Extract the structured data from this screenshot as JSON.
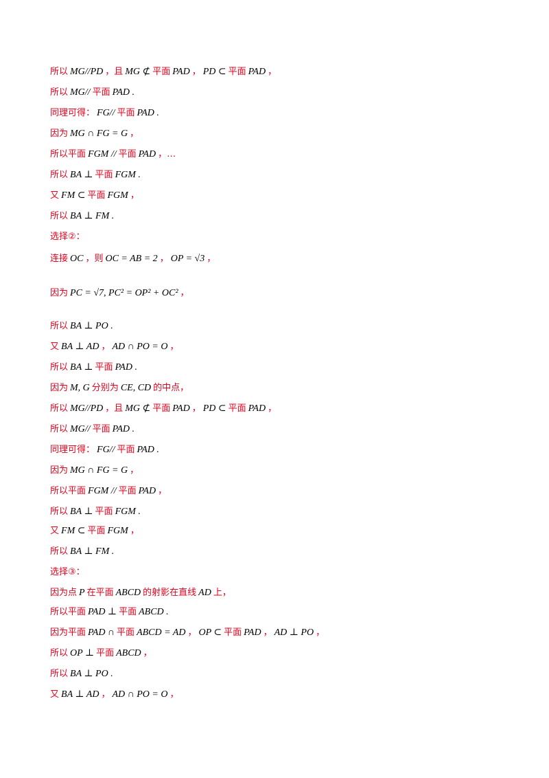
{
  "lines": [
    {
      "parts": [
        {
          "t": "所以",
          "k": "cn"
        },
        {
          "t": "MG//PD",
          "k": "m"
        },
        {
          "t": "，且",
          "k": "cn"
        },
        {
          "t": "MG ⊄",
          "k": "m"
        },
        {
          "t": "平面",
          "k": "cn"
        },
        {
          "t": "PAD",
          "k": "m"
        },
        {
          "t": "，",
          "k": "cn"
        },
        {
          "t": "PD ⊂",
          "k": "m"
        },
        {
          "t": "平面",
          "k": "cn"
        },
        {
          "t": "PAD",
          "k": "m"
        },
        {
          "t": "，",
          "k": "cn"
        }
      ]
    },
    {
      "parts": [
        {
          "t": "所以",
          "k": "cn"
        },
        {
          "t": "MG//",
          "k": "m"
        },
        {
          "t": "平面",
          "k": "cn"
        },
        {
          "t": "PAD .",
          "k": "m"
        }
      ]
    },
    {
      "parts": [
        {
          "t": "同理可得：",
          "k": "cn"
        },
        {
          "t": "FG//",
          "k": "m"
        },
        {
          "t": "平面",
          "k": "cn"
        },
        {
          "t": "PAD .",
          "k": "m"
        }
      ]
    },
    {
      "parts": [
        {
          "t": "因为",
          "k": "cn"
        },
        {
          "t": "MG ∩ FG = G",
          "k": "m"
        },
        {
          "t": "，",
          "k": "cn"
        }
      ]
    },
    {
      "parts": [
        {
          "t": "所以平面",
          "k": "cn"
        },
        {
          "t": "FGM //",
          "k": "m"
        },
        {
          "t": "平面",
          "k": "cn"
        },
        {
          "t": "PAD",
          "k": "m"
        },
        {
          "t": "，…",
          "k": "cn"
        }
      ]
    },
    {
      "parts": [
        {
          "t": "所以",
          "k": "cn"
        },
        {
          "t": "BA ⊥",
          "k": "m"
        },
        {
          "t": "平面",
          "k": "cn"
        },
        {
          "t": "FGM .",
          "k": "m"
        }
      ]
    },
    {
      "parts": [
        {
          "t": "又",
          "k": "cn"
        },
        {
          "t": "FM ⊂",
          "k": "m"
        },
        {
          "t": "平面",
          "k": "cn"
        },
        {
          "t": "FGM",
          "k": "m"
        },
        {
          "t": "，",
          "k": "cn"
        }
      ]
    },
    {
      "parts": [
        {
          "t": "所以",
          "k": "cn"
        },
        {
          "t": "BA ⊥ FM .",
          "k": "m"
        }
      ]
    },
    {
      "parts": [
        {
          "t": "选择②：",
          "k": "cn"
        }
      ]
    },
    {
      "parts": [
        {
          "t": "连接",
          "k": "cn"
        },
        {
          "t": "OC",
          "k": "m"
        },
        {
          "t": "，则",
          "k": "cn"
        },
        {
          "t": "OC = AB = 2",
          "k": "m"
        },
        {
          "t": "，",
          "k": "cn"
        },
        {
          "t": "OP = √3",
          "k": "m"
        },
        {
          "t": "，",
          "k": "cn"
        }
      ]
    },
    {
      "parts": [
        {
          "t": "因为",
          "k": "cn"
        },
        {
          "t": "PC = √7, PC² = OP² + OC²",
          "k": "m"
        },
        {
          "t": "，",
          "k": "cn"
        }
      ]
    },
    {
      "parts": [
        {
          "t": "所以",
          "k": "cn"
        },
        {
          "t": "BA ⊥ PO .",
          "k": "m"
        }
      ]
    },
    {
      "parts": [
        {
          "t": "又",
          "k": "cn"
        },
        {
          "t": "BA ⊥ AD",
          "k": "m"
        },
        {
          "t": "，",
          "k": "cn"
        },
        {
          "t": "AD ∩ PO = O",
          "k": "m"
        },
        {
          "t": "，",
          "k": "cn"
        }
      ]
    },
    {
      "parts": [
        {
          "t": "所以",
          "k": "cn"
        },
        {
          "t": "BA ⊥",
          "k": "m"
        },
        {
          "t": "平面",
          "k": "cn"
        },
        {
          "t": "PAD .",
          "k": "m"
        }
      ]
    },
    {
      "parts": [
        {
          "t": "因为",
          "k": "cn"
        },
        {
          "t": "M, G",
          "k": "m"
        },
        {
          "t": "分别为",
          "k": "cn"
        },
        {
          "t": "CE, CD",
          "k": "m"
        },
        {
          "t": "的中点，",
          "k": "cn"
        }
      ]
    },
    {
      "parts": [
        {
          "t": "所以",
          "k": "cn"
        },
        {
          "t": "MG//PD",
          "k": "m"
        },
        {
          "t": "，且",
          "k": "cn"
        },
        {
          "t": "MG ⊄",
          "k": "m"
        },
        {
          "t": "平面",
          "k": "cn"
        },
        {
          "t": "PAD",
          "k": "m"
        },
        {
          "t": "，",
          "k": "cn"
        },
        {
          "t": "PD ⊂",
          "k": "m"
        },
        {
          "t": "平面",
          "k": "cn"
        },
        {
          "t": "PAD",
          "k": "m"
        },
        {
          "t": "，",
          "k": "cn"
        }
      ]
    },
    {
      "parts": [
        {
          "t": "所以",
          "k": "cn"
        },
        {
          "t": "MG//",
          "k": "m"
        },
        {
          "t": "平面",
          "k": "cn"
        },
        {
          "t": "PAD .",
          "k": "m"
        }
      ]
    },
    {
      "parts": [
        {
          "t": "同理可得：",
          "k": "cn"
        },
        {
          "t": "FG//",
          "k": "m"
        },
        {
          "t": "平面",
          "k": "cn"
        },
        {
          "t": "PAD .",
          "k": "m"
        }
      ]
    },
    {
      "parts": [
        {
          "t": "因为",
          "k": "cn"
        },
        {
          "t": "MG ∩ FG = G",
          "k": "m"
        },
        {
          "t": "，",
          "k": "cn"
        }
      ]
    },
    {
      "parts": [
        {
          "t": "所以平面",
          "k": "cn"
        },
        {
          "t": "FGM //",
          "k": "m"
        },
        {
          "t": "平面",
          "k": "cn"
        },
        {
          "t": "PAD",
          "k": "m"
        },
        {
          "t": "，",
          "k": "cn"
        }
      ]
    },
    {
      "parts": [
        {
          "t": "所以",
          "k": "cn"
        },
        {
          "t": "BA ⊥",
          "k": "m"
        },
        {
          "t": "平面",
          "k": "cn"
        },
        {
          "t": "FGM .",
          "k": "m"
        }
      ]
    },
    {
      "parts": [
        {
          "t": "又",
          "k": "cn"
        },
        {
          "t": "FM ⊂",
          "k": "m"
        },
        {
          "t": "平面",
          "k": "cn"
        },
        {
          "t": "FGM",
          "k": "m"
        },
        {
          "t": "，",
          "k": "cn"
        }
      ]
    },
    {
      "parts": [
        {
          "t": "所以",
          "k": "cn"
        },
        {
          "t": "BA ⊥ FM .",
          "k": "m"
        }
      ]
    },
    {
      "parts": [
        {
          "t": "选择③：",
          "k": "cn"
        }
      ]
    },
    {
      "parts": [
        {
          "t": "因为点",
          "k": "cn"
        },
        {
          "t": "P",
          "k": "m"
        },
        {
          "t": "在平面",
          "k": "cn"
        },
        {
          "t": "ABCD",
          "k": "m"
        },
        {
          "t": "的射影在直线",
          "k": "cn"
        },
        {
          "t": "AD",
          "k": "m"
        },
        {
          "t": "上，",
          "k": "cn"
        }
      ]
    },
    {
      "parts": [
        {
          "t": "所以平面",
          "k": "cn"
        },
        {
          "t": "PAD ⊥",
          "k": "m"
        },
        {
          "t": "平面",
          "k": "cn"
        },
        {
          "t": "ABCD .",
          "k": "m"
        }
      ]
    },
    {
      "parts": [
        {
          "t": "因为平面",
          "k": "cn"
        },
        {
          "t": "PAD ∩",
          "k": "m"
        },
        {
          "t": "平面",
          "k": "cn"
        },
        {
          "t": "ABCD = AD",
          "k": "m"
        },
        {
          "t": "，",
          "k": "cn"
        },
        {
          "t": "OP ⊂",
          "k": "m"
        },
        {
          "t": "平面",
          "k": "cn"
        },
        {
          "t": "PAD",
          "k": "m"
        },
        {
          "t": "，",
          "k": "cn"
        },
        {
          "t": "AD ⊥ PO",
          "k": "m"
        },
        {
          "t": "，",
          "k": "cn"
        }
      ]
    },
    {
      "parts": [
        {
          "t": "所以",
          "k": "cn"
        },
        {
          "t": "OP ⊥",
          "k": "m"
        },
        {
          "t": "平面",
          "k": "cn"
        },
        {
          "t": "ABCD",
          "k": "m"
        },
        {
          "t": "，",
          "k": "cn"
        }
      ]
    },
    {
      "parts": [
        {
          "t": "所以",
          "k": "cn"
        },
        {
          "t": "BA ⊥ PO .",
          "k": "m"
        }
      ]
    },
    {
      "parts": [
        {
          "t": "又",
          "k": "cn"
        },
        {
          "t": "BA ⊥ AD",
          "k": "m"
        },
        {
          "t": "，",
          "k": "cn"
        },
        {
          "t": "AD ∩ PO = O",
          "k": "m"
        },
        {
          "t": "，",
          "k": "cn"
        }
      ]
    }
  ]
}
